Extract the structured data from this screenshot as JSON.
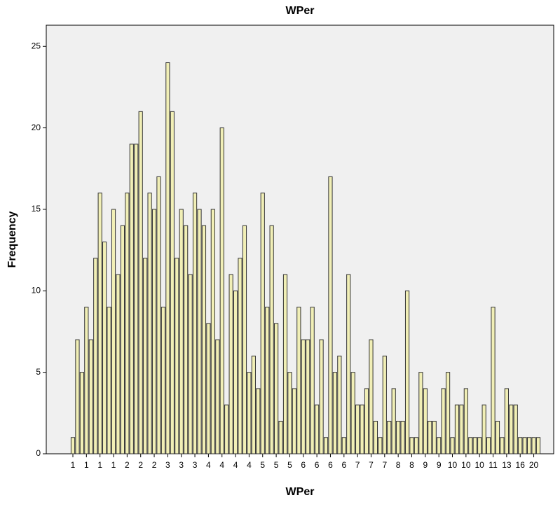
{
  "chart_data": {
    "type": "bar",
    "title": "WPer",
    "x_label": "WPer",
    "y_label": "Frequency",
    "categories": [
      "1",
      null,
      null,
      "1",
      null,
      null,
      "1",
      null,
      null,
      "1",
      null,
      null,
      "2",
      null,
      null,
      "2",
      null,
      null,
      "2",
      null,
      null,
      "3",
      null,
      null,
      "3",
      null,
      null,
      "3",
      null,
      null,
      "4",
      null,
      null,
      "4",
      null,
      null,
      "4",
      null,
      null,
      "4",
      null,
      null,
      "5",
      null,
      null,
      "5",
      null,
      null,
      "5",
      null,
      null,
      "6",
      null,
      null,
      "6",
      null,
      null,
      "6",
      null,
      null,
      "6",
      null,
      null,
      "7",
      null,
      null,
      "7",
      null,
      null,
      "7",
      null,
      null,
      "8",
      null,
      null,
      "8",
      null,
      null,
      "9",
      null,
      null,
      "9",
      null,
      null,
      "10",
      null,
      null,
      "10",
      null,
      null,
      "10",
      null,
      null,
      "11",
      null,
      null,
      "13",
      null,
      null,
      "16",
      null,
      null,
      "20",
      null
    ],
    "values": [
      1,
      7,
      5,
      9,
      7,
      12,
      16,
      13,
      9,
      15,
      11,
      14,
      16,
      19,
      19,
      21,
      12,
      16,
      15,
      17,
      9,
      24,
      21,
      12,
      15,
      14,
      11,
      16,
      15,
      14,
      8,
      15,
      7,
      20,
      3,
      11,
      10,
      12,
      14,
      5,
      6,
      4,
      16,
      9,
      14,
      8,
      2,
      11,
      5,
      4,
      9,
      7,
      7,
      9,
      3,
      7,
      1,
      17,
      5,
      6,
      1,
      11,
      5,
      3,
      3,
      4,
      7,
      2,
      1,
      6,
      2,
      4,
      2,
      2,
      10,
      1,
      1,
      5,
      4,
      2,
      2,
      1,
      4,
      5,
      1,
      3,
      3,
      4,
      1,
      1,
      1,
      3,
      1,
      9,
      2,
      1,
      4,
      3,
      3,
      1,
      1,
      1,
      1,
      1
    ],
    "color": "#f1efb6",
    "ylim": [
      0,
      26.3
    ],
    "yticks": [
      0,
      5,
      10,
      15,
      20,
      25
    ]
  }
}
